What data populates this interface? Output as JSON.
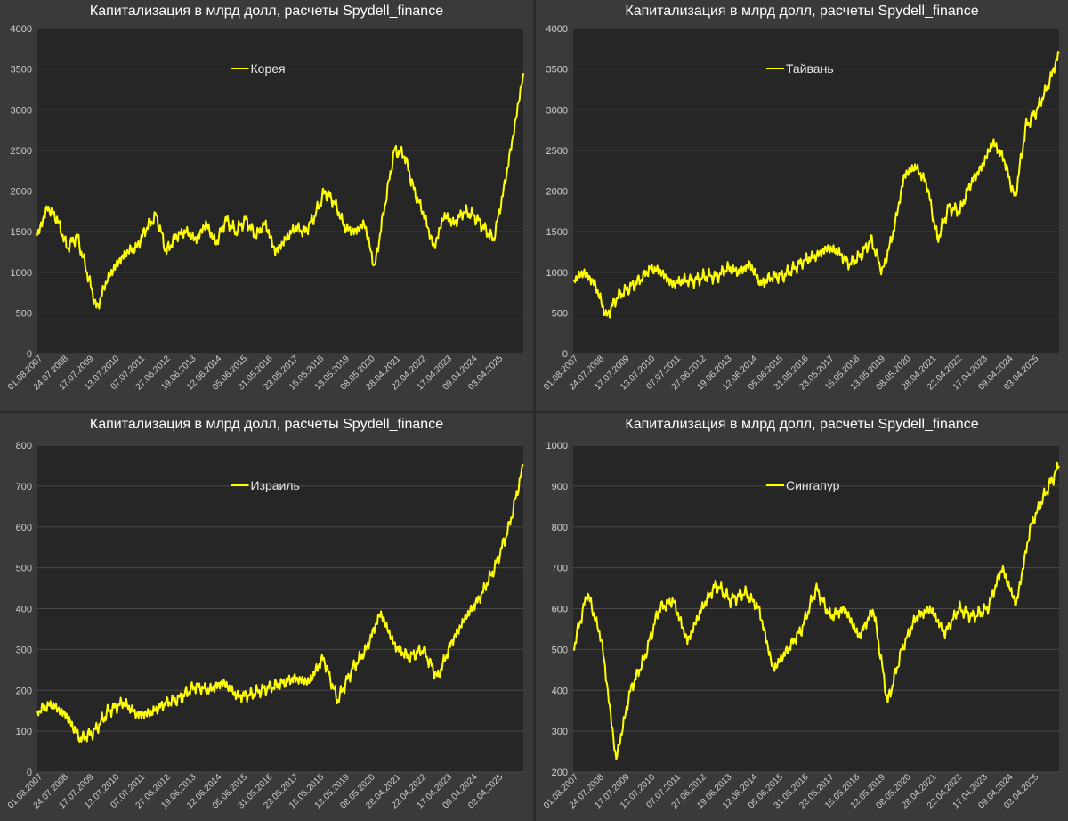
{
  "chart_data": [
    {
      "type": "line",
      "title": "Капитализация в млрд долл, расчеты Spydell_finance",
      "legend": "Корея",
      "legend_position": "top-center",
      "ylim": [
        0,
        4000
      ],
      "yticks": [
        "0",
        "500",
        "1000",
        "1500",
        "2000",
        "2500",
        "3000",
        "3500",
        "4000"
      ],
      "xlabels": [
        "01.08.2007",
        "24.07.2008",
        "17.07.2009",
        "13.07.2010",
        "07.07.2011",
        "27.06.2012",
        "19.06.2013",
        "12.06.2014",
        "05.06.2015",
        "31.05.2016",
        "23.05.2017",
        "15.05.2018",
        "13.05.2019",
        "08.05.2020",
        "28.04.2021",
        "22.04.2022",
        "17.04.2023",
        "09.04.2024",
        "03.04.2025"
      ],
      "series": [
        {
          "name": "Корея",
          "values": [
            1450,
            1800,
            1650,
            1300,
            1450,
            1000,
            550,
            900,
            1100,
            1250,
            1300,
            1550,
            1700,
            1250,
            1450,
            1500,
            1400,
            1600,
            1350,
            1650,
            1500,
            1650,
            1450,
            1600,
            1250,
            1400,
            1550,
            1500,
            1700,
            2000,
            1850,
            1550,
            1500,
            1600,
            1050,
            1800,
            2500,
            2450,
            2000,
            1700,
            1300,
            1700,
            1600,
            1750,
            1700,
            1550,
            1400,
            2000,
            2700,
            3450
          ]
        }
      ]
    },
    {
      "type": "line",
      "title": "Капитализация в млрд долл, расчеты Spydell_finance",
      "legend": "Тайвань",
      "legend_position": "top-center",
      "ylim": [
        0,
        4000
      ],
      "yticks": [
        "0",
        "500",
        "1000",
        "1500",
        "2000",
        "2500",
        "3000",
        "3500",
        "4000"
      ],
      "xlabels": [
        "01.08.2007",
        "24.07.2008",
        "17.07.2009",
        "13.07.2010",
        "07.07.2011",
        "27.06.2012",
        "19.06.2013",
        "12.06.2014",
        "05.06.2015",
        "31.05.2016",
        "23.05.2017",
        "15.05.2018",
        "13.05.2019",
        "08.05.2020",
        "28.04.2021",
        "22.04.2022",
        "17.04.2023",
        "09.04.2024",
        "03.04.2025"
      ],
      "series": [
        {
          "name": "Тайвань",
          "values": [
            900,
            1000,
            850,
            450,
            700,
            800,
            900,
            1050,
            1000,
            850,
            900,
            900,
            950,
            950,
            1050,
            1000,
            1100,
            850,
            950,
            950,
            1050,
            1150,
            1200,
            1300,
            1250,
            1100,
            1200,
            1400,
            1000,
            1500,
            2200,
            2300,
            2100,
            1400,
            1800,
            1750,
            2100,
            2300,
            2600,
            2400,
            1900,
            2800,
            3000,
            3300,
            3700
          ]
        }
      ]
    },
    {
      "type": "line",
      "title": "Капитализация в млрд долл, расчеты Spydell_finance",
      "legend": "Израиль",
      "legend_position": "top-center",
      "ylim": [
        0,
        800
      ],
      "yticks": [
        "0",
        "100",
        "200",
        "300",
        "400",
        "500",
        "600",
        "700",
        "800"
      ],
      "xlabels": [
        "01.08.2007",
        "24.07.2008",
        "17.07.2009",
        "13.07.2010",
        "07.07.2011",
        "27.06.2012",
        "19.06.2013",
        "12.06.2014",
        "05.06.2015",
        "31.05.2016",
        "23.05.2017",
        "15.05.2018",
        "13.05.2019",
        "08.05.2020",
        "28.04.2021",
        "22.04.2022",
        "17.04.2023",
        "09.04.2024",
        "03.04.2025"
      ],
      "series": [
        {
          "name": "Израиль",
          "values": [
            150,
            165,
            140,
            80,
            100,
            150,
            170,
            140,
            145,
            170,
            180,
            210,
            200,
            220,
            185,
            190,
            205,
            215,
            230,
            220,
            280,
            175,
            250,
            300,
            390,
            310,
            280,
            300,
            230,
            320,
            380,
            430,
            500,
            600,
            750
          ]
        }
      ]
    },
    {
      "type": "line",
      "title": "Капитализация в млрд долл, расчеты Spydell_finance",
      "legend": "Сингапур",
      "legend_position": "top-center",
      "ylim": [
        200,
        1000
      ],
      "yticks": [
        "200",
        "300",
        "400",
        "500",
        "600",
        "700",
        "800",
        "900",
        "1000"
      ],
      "xlabels": [
        "01.08.2007",
        "24.07.2008",
        "17.07.2009",
        "13.07.2010",
        "07.07.2011",
        "27.06.2012",
        "19.06.2013",
        "12.06.2014",
        "05.06.2015",
        "31.05.2016",
        "23.05.2017",
        "15.05.2018",
        "13.05.2019",
        "08.05.2020",
        "28.04.2021",
        "22.04.2022",
        "17.04.2023",
        "09.04.2024",
        "03.04.2025"
      ],
      "series": [
        {
          "name": "Сингапур",
          "values": [
            500,
            640,
            520,
            230,
            400,
            480,
            600,
            620,
            520,
            600,
            660,
            620,
            640,
            600,
            450,
            500,
            550,
            650,
            580,
            600,
            530,
            600,
            370,
            500,
            580,
            600,
            540,
            600,
            580,
            600,
            700,
            610,
            800,
            880,
            950
          ]
        }
      ]
    }
  ]
}
